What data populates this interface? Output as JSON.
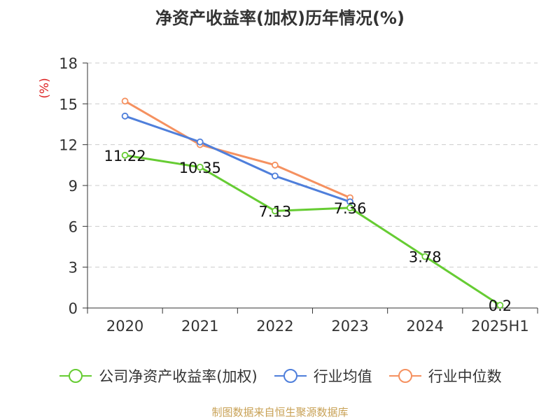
{
  "title": "净资产收益率(加权)历年情况(%)",
  "source": "制图数据来自恒生聚源数据库",
  "chart_data": {
    "type": "line",
    "title": "净资产收益率(加权)历年情况(%)",
    "ylabel": "(%)",
    "xlabel": "",
    "categories": [
      "2020",
      "2021",
      "2022",
      "2023",
      "2024",
      "2025H1"
    ],
    "ylim": [
      0,
      18
    ],
    "yticks": [
      0,
      3,
      6,
      9,
      12,
      15,
      18
    ],
    "grid": "horizontal-dashed",
    "legend_position": "bottom",
    "series": [
      {
        "name": "公司净资产收益率(加权)",
        "color": "#66cc33",
        "values": [
          11.22,
          10.35,
          7.13,
          7.36,
          3.78,
          0.2
        ],
        "labels": [
          "11.22",
          "10.35",
          "7.13",
          "7.36",
          "3.78",
          "0.2"
        ]
      },
      {
        "name": "行业均值",
        "color": "#4f7fdb",
        "values": [
          14.1,
          12.2,
          9.7,
          7.8,
          null,
          null
        ],
        "labels": []
      },
      {
        "name": "行业中位数",
        "color": "#f59160",
        "values": [
          15.2,
          12.0,
          10.5,
          8.1,
          null,
          null
        ],
        "labels": []
      }
    ]
  }
}
